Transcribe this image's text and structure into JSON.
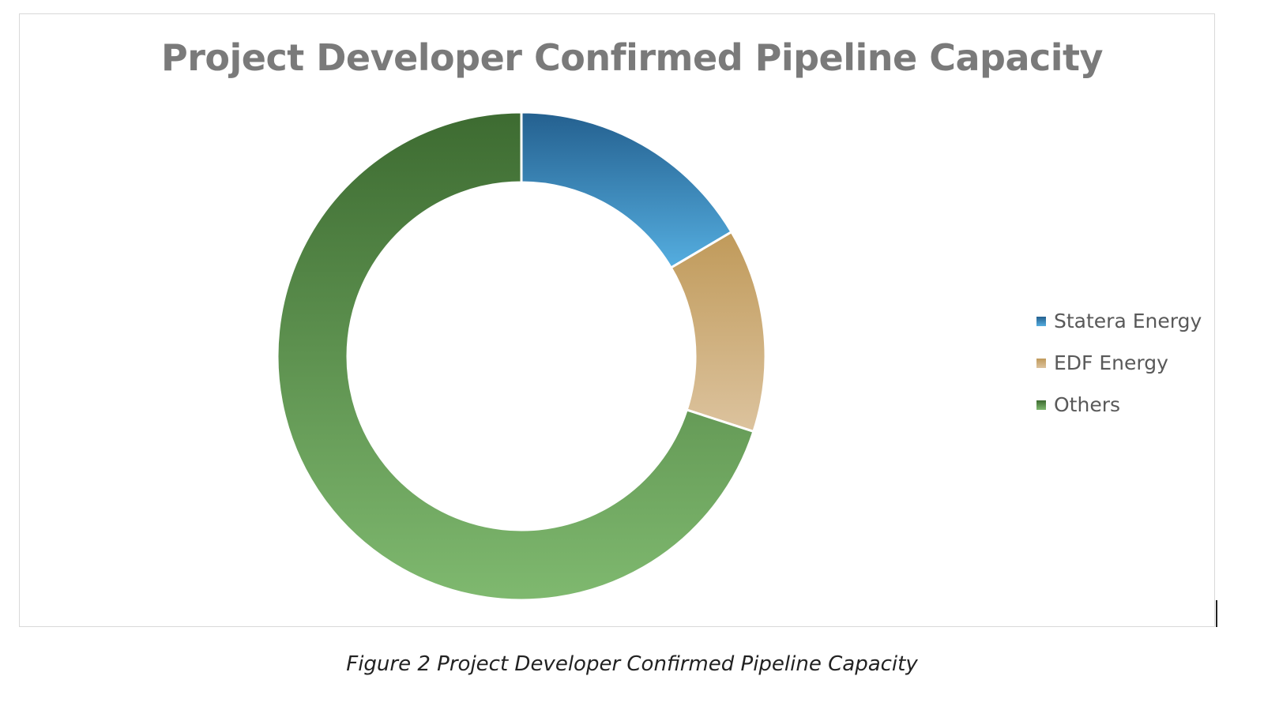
{
  "chart_data": {
    "type": "pie",
    "variant": "donut",
    "title": "Project Developer Confirmed Pipeline Capacity",
    "categories": [
      "Statera Energy",
      "EDF Energy",
      "Others"
    ],
    "values": [
      16.5,
      13.5,
      70
    ],
    "unit": "percent of total",
    "colors": [
      "#3b8fc6",
      "#d3b07f",
      "#6aa45e"
    ],
    "gradient_colors": [
      {
        "top": "#24608f",
        "bottom": "#55aee0"
      },
      {
        "top": "#c09a5a",
        "bottom": "#dcc39e"
      },
      {
        "top": "#3d6b31",
        "bottom": "#7fb96f"
      }
    ],
    "legend_position": "right",
    "data_labels": false,
    "start_angle_deg": 0,
    "direction": "clockwise"
  },
  "figure": {
    "caption": "Figure 2 Project Developer Confirmed Pipeline Capacity"
  }
}
